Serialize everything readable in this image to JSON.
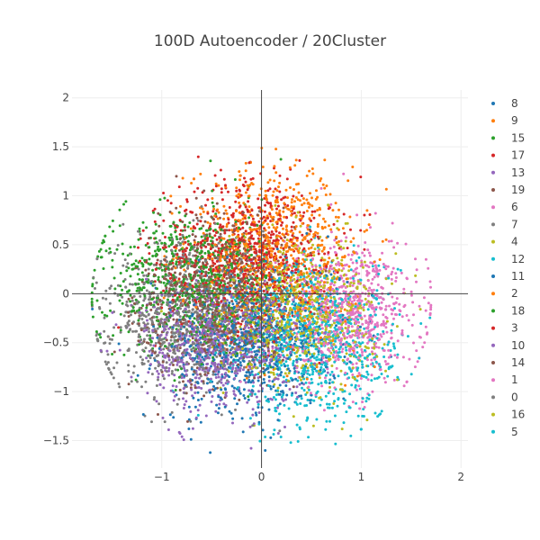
{
  "chart_data": {
    "type": "scatter",
    "title": "100D Autoencoder / 20Cluster",
    "xlabel": "",
    "ylabel": "",
    "xlim": [
      -1.9,
      2.07
    ],
    "ylim": [
      -1.78,
      2.08
    ],
    "xticks": [
      -1,
      0,
      1,
      2
    ],
    "yticks": [
      -1.5,
      -1,
      -0.5,
      0,
      0.5,
      1,
      1.5,
      2
    ],
    "grid": true,
    "zero_lines": true,
    "legend_position": "right",
    "series": [
      {
        "name": "8",
        "color": "#1f77b4",
        "center": [
          0.05,
          -0.35
        ],
        "spread": [
          0.45,
          0.4
        ]
      },
      {
        "name": "9",
        "color": "#ff7f0e",
        "center": [
          0.05,
          0.6
        ],
        "spread": [
          0.4,
          0.35
        ]
      },
      {
        "name": "15",
        "color": "#2ca02c",
        "center": [
          -0.55,
          0.0
        ],
        "spread": [
          0.45,
          0.4
        ]
      },
      {
        "name": "17",
        "color": "#d62728",
        "center": [
          -0.25,
          0.3
        ],
        "spread": [
          0.4,
          0.35
        ]
      },
      {
        "name": "13",
        "color": "#9467bd",
        "center": [
          -0.35,
          -0.5
        ],
        "spread": [
          0.4,
          0.35
        ]
      },
      {
        "name": "19",
        "color": "#8c564b",
        "center": [
          -0.4,
          0.1
        ],
        "spread": [
          0.4,
          0.4
        ]
      },
      {
        "name": "6",
        "color": "#e377c2",
        "center": [
          0.85,
          -0.3
        ],
        "spread": [
          0.35,
          0.35
        ]
      },
      {
        "name": "7",
        "color": "#7f7f7f",
        "center": [
          -0.75,
          -0.15
        ],
        "spread": [
          0.4,
          0.35
        ]
      },
      {
        "name": "4",
        "color": "#bcbd22",
        "center": [
          0.45,
          -0.15
        ],
        "spread": [
          0.35,
          0.35
        ]
      },
      {
        "name": "12",
        "color": "#17becf",
        "center": [
          0.55,
          -0.4
        ],
        "spread": [
          0.4,
          0.4
        ]
      },
      {
        "name": "11",
        "color": "#1f77b4",
        "center": [
          -0.2,
          -0.6
        ],
        "spread": [
          0.4,
          0.35
        ]
      },
      {
        "name": "2",
        "color": "#ff7f0e",
        "center": [
          0.2,
          0.25
        ],
        "spread": [
          0.4,
          0.4
        ]
      },
      {
        "name": "18",
        "color": "#2ca02c",
        "center": [
          -0.8,
          0.2
        ],
        "spread": [
          0.4,
          0.35
        ]
      },
      {
        "name": "3",
        "color": "#d62728",
        "center": [
          -0.1,
          0.55
        ],
        "spread": [
          0.4,
          0.35
        ]
      },
      {
        "name": "10",
        "color": "#9467bd",
        "center": [
          -0.5,
          -0.55
        ],
        "spread": [
          0.4,
          0.3
        ]
      },
      {
        "name": "14",
        "color": "#8c564b",
        "center": [
          -0.45,
          -0.2
        ],
        "spread": [
          0.4,
          0.4
        ]
      },
      {
        "name": "1",
        "color": "#e377c2",
        "center": [
          0.95,
          -0.1
        ],
        "spread": [
          0.3,
          0.35
        ]
      },
      {
        "name": "0",
        "color": "#7f7f7f",
        "center": [
          -0.9,
          -0.4
        ],
        "spread": [
          0.4,
          0.35
        ]
      },
      {
        "name": "16",
        "color": "#bcbd22",
        "center": [
          0.3,
          -0.2
        ],
        "spread": [
          0.4,
          0.35
        ]
      },
      {
        "name": "5",
        "color": "#17becf",
        "center": [
          0.6,
          -0.6
        ],
        "spread": [
          0.4,
          0.4
        ]
      }
    ]
  }
}
